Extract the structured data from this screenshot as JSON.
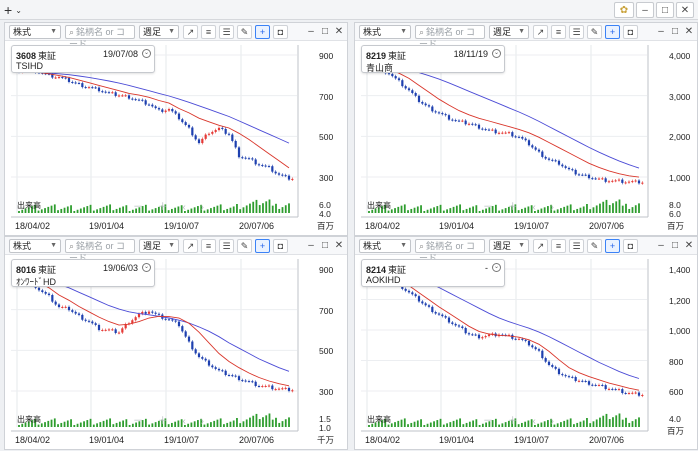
{
  "topbar": {
    "add_label": "+",
    "add_chevron": "⌄",
    "gear_icon": "gear-icon",
    "minimize": "–",
    "maximize": "□",
    "close": "✕"
  },
  "panel_toolbar": {
    "market": "株式",
    "search_placeholder": "銘柄名 or コード",
    "period": "週足",
    "window_min": "–",
    "window_max": "□",
    "window_close": "✕"
  },
  "volume_label": "出来高",
  "x_ticks": [
    "18/04/02",
    "19/01/04",
    "19/10/07",
    "20/07/06"
  ],
  "panels": [
    {
      "code": "3608",
      "exchange": "東証",
      "date": "19/07/08",
      "name": "TSIHD",
      "y_ticks": [
        "900",
        "700",
        "500",
        "300"
      ],
      "vol_ticks": [
        "6.0",
        "4.0"
      ],
      "vol_unit": "百万",
      "chart_data": {
        "type": "candlestick",
        "close": [
          830,
          845,
          820,
          800,
          790,
          770,
          750,
          735,
          720,
          700,
          690,
          680,
          660,
          640,
          600,
          610,
          560,
          500,
          420,
          480,
          500,
          470,
          350,
          330,
          300,
          280,
          240,
          220
        ],
        "ma_short": [
          820,
          822,
          818,
          810,
          800,
          790,
          775,
          760,
          745,
          730,
          715,
          700,
          690,
          678,
          660,
          645,
          615,
          590,
          560,
          540,
          520,
          505,
          475,
          440,
          400,
          360,
          320,
          280
        ],
        "ma_long": [
          820,
          820,
          818,
          815,
          810,
          805,
          798,
          790,
          780,
          770,
          758,
          745,
          730,
          715,
          700,
          685,
          668,
          650,
          630,
          610,
          590,
          570,
          545,
          520,
          495,
          470,
          445,
          420
        ],
        "ylim": [
          150,
          950
        ]
      }
    },
    {
      "code": "8219",
      "exchange": "東証",
      "date": "18/11/19",
      "name": "青山商",
      "y_ticks": [
        "4,000",
        "3,000",
        "2,000",
        "1,000"
      ],
      "vol_ticks": [
        "8.0",
        "6.0"
      ],
      "vol_unit": "百万",
      "chart_data": {
        "type": "candlestick",
        "close": [
          3900,
          3850,
          3700,
          3450,
          3200,
          2900,
          2700,
          2550,
          2400,
          2300,
          2250,
          2150,
          2050,
          2000,
          1950,
          1850,
          1650,
          1400,
          1200,
          1100,
          900,
          780,
          720,
          640,
          600,
          580,
          560,
          550
        ],
        "ma_short": [
          3900,
          3880,
          3820,
          3700,
          3550,
          3350,
          3150,
          2950,
          2780,
          2620,
          2500,
          2400,
          2320,
          2240,
          2160,
          2080,
          1980,
          1850,
          1700,
          1550,
          1400,
          1250,
          1100,
          980,
          880,
          800,
          740,
          700
        ],
        "ma_long": [
          3950,
          3930,
          3900,
          3860,
          3800,
          3720,
          3630,
          3530,
          3420,
          3300,
          3180,
          3060,
          2940,
          2820,
          2700,
          2580,
          2450,
          2310,
          2160,
          2010,
          1860,
          1710,
          1560,
          1420,
          1290,
          1170,
          1060,
          960
        ],
        "ylim": [
          300,
          4400
        ]
      }
    },
    {
      "code": "8016",
      "exchange": "東証",
      "date": "19/06/03",
      "name": "ｵﾝﾜｰﾄﾞHD",
      "y_ticks": [
        "900",
        "700",
        "500",
        "300"
      ],
      "vol_ticks": [
        "1.5",
        "1.0"
      ],
      "vol_unit": "千万",
      "chart_data": {
        "type": "candlestick",
        "close": [
          870,
          860,
          800,
          760,
          700,
          690,
          650,
          620,
          580,
          570,
          560,
          620,
          660,
          680,
          650,
          630,
          600,
          500,
          420,
          380,
          340,
          320,
          300,
          280,
          260,
          250,
          240,
          235
        ],
        "ma_short": [
          870,
          865,
          840,
          810,
          770,
          740,
          705,
          675,
          645,
          620,
          600,
          605,
          620,
          640,
          650,
          648,
          640,
          610,
          560,
          500,
          440,
          395,
          360,
          330,
          305,
          285,
          270,
          258
        ],
        "ma_long": [
          880,
          875,
          865,
          850,
          830,
          810,
          785,
          760,
          735,
          710,
          690,
          675,
          665,
          658,
          650,
          640,
          628,
          612,
          590,
          565,
          535,
          500,
          470,
          440,
          410,
          385,
          360,
          340
        ],
        "ylim": [
          150,
          950
        ]
      }
    },
    {
      "code": "8214",
      "exchange": "東証",
      "date": "-",
      "name": "AOKIHD",
      "y_ticks": [
        "1,400",
        "1,200",
        "1,000",
        "800",
        "600"
      ],
      "vol_ticks": [
        "4.0"
      ],
      "vol_unit": "百万",
      "chart_data": {
        "type": "candlestick",
        "close": [
          1490,
          1480,
          1430,
          1380,
          1320,
          1260,
          1200,
          1150,
          1100,
          1050,
          1000,
          980,
          990,
          1000,
          980,
          960,
          920,
          860,
          760,
          700,
          660,
          640,
          620,
          600,
          580,
          560,
          540,
          530
        ],
        "ma_short": [
          1490,
          1485,
          1460,
          1420,
          1375,
          1320,
          1265,
          1210,
          1160,
          1110,
          1060,
          1020,
          1000,
          990,
          985,
          975,
          955,
          920,
          865,
          800,
          740,
          700,
          670,
          645,
          620,
          600,
          580,
          565
        ],
        "ma_long": [
          1500,
          1495,
          1485,
          1470,
          1450,
          1425,
          1395,
          1360,
          1320,
          1280,
          1240,
          1200,
          1160,
          1125,
          1095,
          1070,
          1045,
          1015,
          980,
          940,
          900,
          860,
          820,
          780,
          745,
          710,
          680,
          655
        ],
        "ylim": [
          450,
          1550
        ]
      }
    }
  ],
  "colors": {
    "up": "#e53935",
    "down": "#1e40af",
    "ma_short": "#d9362b",
    "ma_long": "#4b4bd6",
    "volume": "#2e9d2e"
  }
}
